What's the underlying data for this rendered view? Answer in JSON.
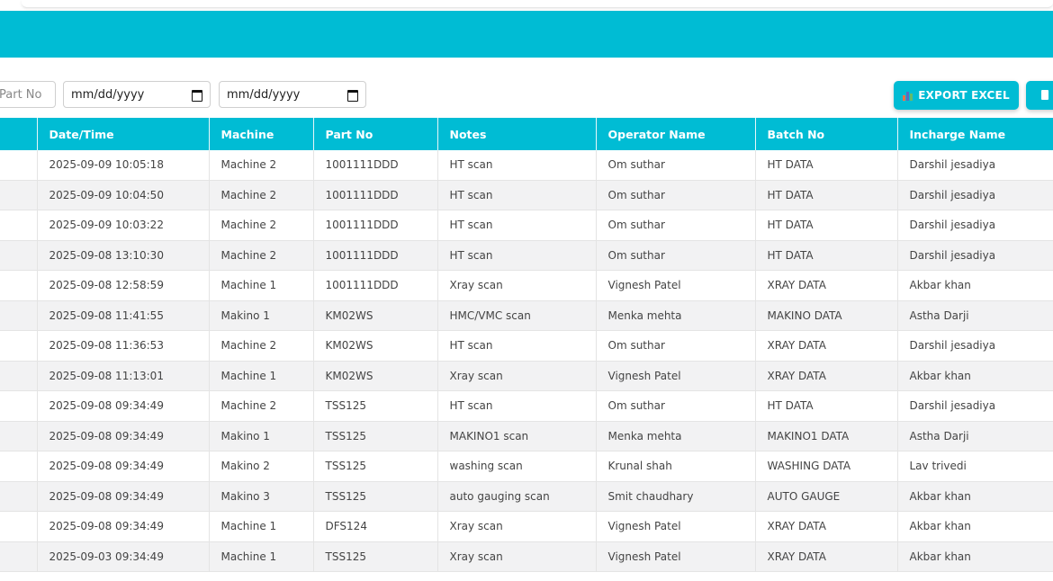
{
  "filters": {
    "part_no_placeholder": "Part No",
    "date_from": "mm/dd/yyyy",
    "date_to": "mm/dd/yyyy"
  },
  "toolbar": {
    "export_label": "EXPORT EXCEL",
    "export_icon": "bar-chart-icon",
    "second_icon": "document-icon"
  },
  "colors": {
    "accent": "#00bcd4",
    "row_alt": "#f2f2f3"
  },
  "table": {
    "headers": [
      "Date/Time",
      "Machine",
      "Part No",
      "Notes",
      "Operator Name",
      "Batch No",
      "Incharge Name"
    ],
    "rows": [
      [
        "2025-09-09 10:05:18",
        "Machine 2",
        "1001111DDD",
        "HT scan",
        "Om suthar",
        "HT DATA",
        "Darshil jesadiya"
      ],
      [
        "2025-09-09 10:04:50",
        "Machine 2",
        "1001111DDD",
        "HT scan",
        "Om suthar",
        "HT DATA",
        "Darshil jesadiya"
      ],
      [
        "2025-09-09 10:03:22",
        "Machine 2",
        "1001111DDD",
        "HT scan",
        "Om suthar",
        "HT DATA",
        "Darshil jesadiya"
      ],
      [
        "2025-09-08 13:10:30",
        "Machine 2",
        "1001111DDD",
        "HT scan",
        "Om suthar",
        "HT DATA",
        "Darshil jesadiya"
      ],
      [
        "2025-09-08 12:58:59",
        "Machine 1",
        "1001111DDD",
        "Xray scan",
        "Vignesh Patel",
        "XRAY DATA",
        "Akbar khan"
      ],
      [
        "2025-09-08 11:41:55",
        "Makino 1",
        "KM02WS",
        "HMC/VMC scan",
        "Menka mehta",
        "MAKINO DATA",
        "Astha Darji"
      ],
      [
        "2025-09-08 11:36:53",
        "Machine 2",
        "KM02WS",
        "HT scan",
        "Om suthar",
        "XRAY DATA",
        "Darshil jesadiya"
      ],
      [
        "2025-09-08 11:13:01",
        "Machine 1",
        "KM02WS",
        "Xray scan",
        "Vignesh Patel",
        "XRAY DATA",
        "Akbar khan"
      ],
      [
        "2025-09-08 09:34:49",
        "Machine 2",
        "TSS125",
        "HT scan",
        "Om suthar",
        "HT DATA",
        "Darshil jesadiya"
      ],
      [
        "2025-09-08 09:34:49",
        "Makino 1",
        "TSS125",
        "MAKINO1 scan",
        "Menka mehta",
        "MAKINO1 DATA",
        "Astha Darji"
      ],
      [
        "2025-09-08 09:34:49",
        "Makino 2",
        "TSS125",
        "washing scan",
        "Krunal shah",
        "WASHING DATA",
        "Lav trivedi"
      ],
      [
        "2025-09-08 09:34:49",
        "Makino 3",
        "TSS125",
        "auto gauging scan",
        "Smit chaudhary",
        "AUTO GAUGE",
        "Akbar khan"
      ],
      [
        "2025-09-08 09:34:49",
        "Machine 1",
        "DFS124",
        "Xray scan",
        "Vignesh Patel",
        "XRAY DATA",
        "Akbar khan"
      ],
      [
        "2025-09-03 09:34:49",
        "Machine 1",
        "TSS125",
        "Xray scan",
        "Vignesh Patel",
        "XRAY DATA",
        "Akbar khan"
      ]
    ]
  }
}
